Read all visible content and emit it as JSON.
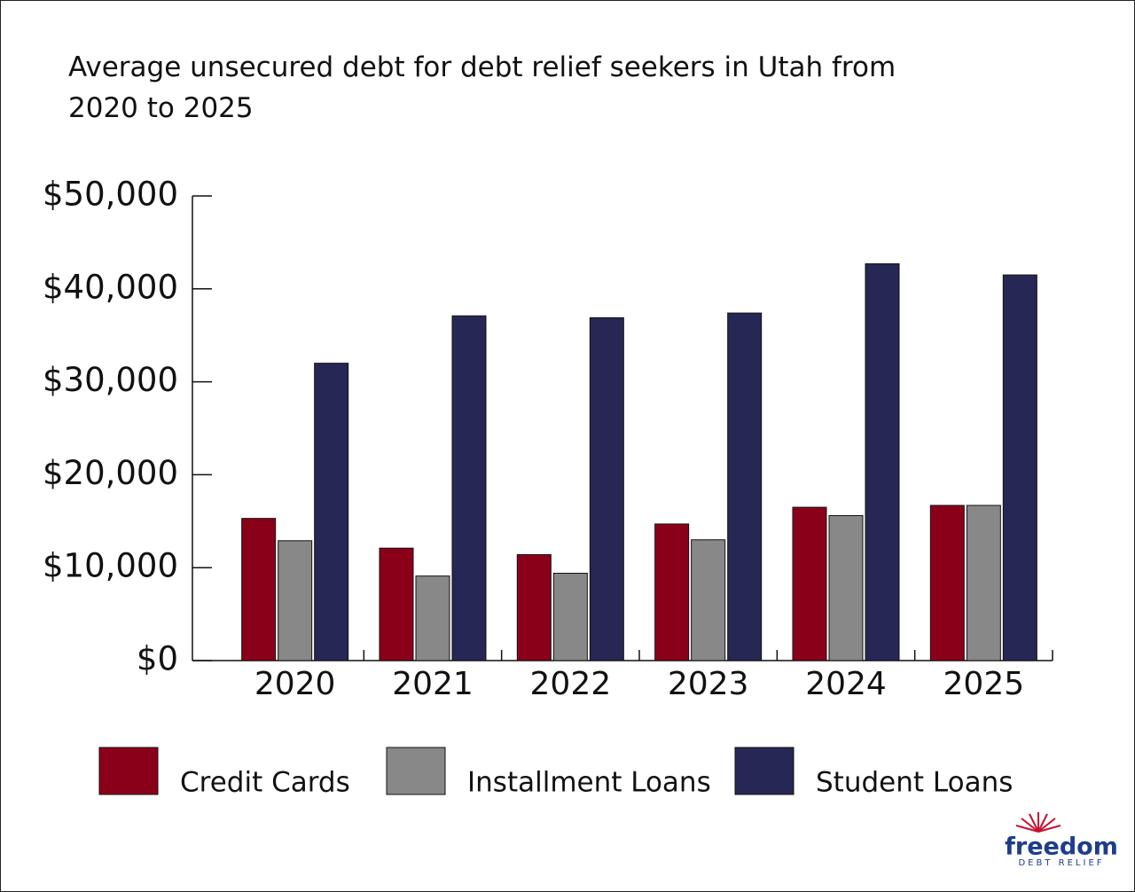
{
  "chart_data": {
    "type": "bar",
    "title": "Average unsecured debt for debt relief seekers in Utah from 2020 to 2025",
    "categories": [
      "2020",
      "2021",
      "2022",
      "2023",
      "2024",
      "2025"
    ],
    "series": [
      {
        "name": "Credit Cards",
        "color": "#8b0019",
        "values": [
          15300,
          12100,
          11400,
          14700,
          16500,
          16700
        ]
      },
      {
        "name": "Installment Loans",
        "color": "#888888",
        "values": [
          12900,
          9100,
          9400,
          13000,
          15600,
          16700
        ]
      },
      {
        "name": "Student Loans",
        "color": "#262755",
        "values": [
          32000,
          37100,
          36900,
          37400,
          42700,
          41500
        ]
      }
    ],
    "ylim": [
      0,
      50000
    ],
    "yticks": [
      {
        "value": 0,
        "label": "$0"
      },
      {
        "value": 10000,
        "label": "$10,000"
      },
      {
        "value": 20000,
        "label": "$20,000"
      },
      {
        "value": 30000,
        "label": "$30,000"
      },
      {
        "value": 40000,
        "label": "$40,000"
      },
      {
        "value": 50000,
        "label": "$50,000"
      }
    ],
    "grid": false
  },
  "logo": {
    "name": "freedom",
    "tagline": "DEBT RELIEF"
  }
}
